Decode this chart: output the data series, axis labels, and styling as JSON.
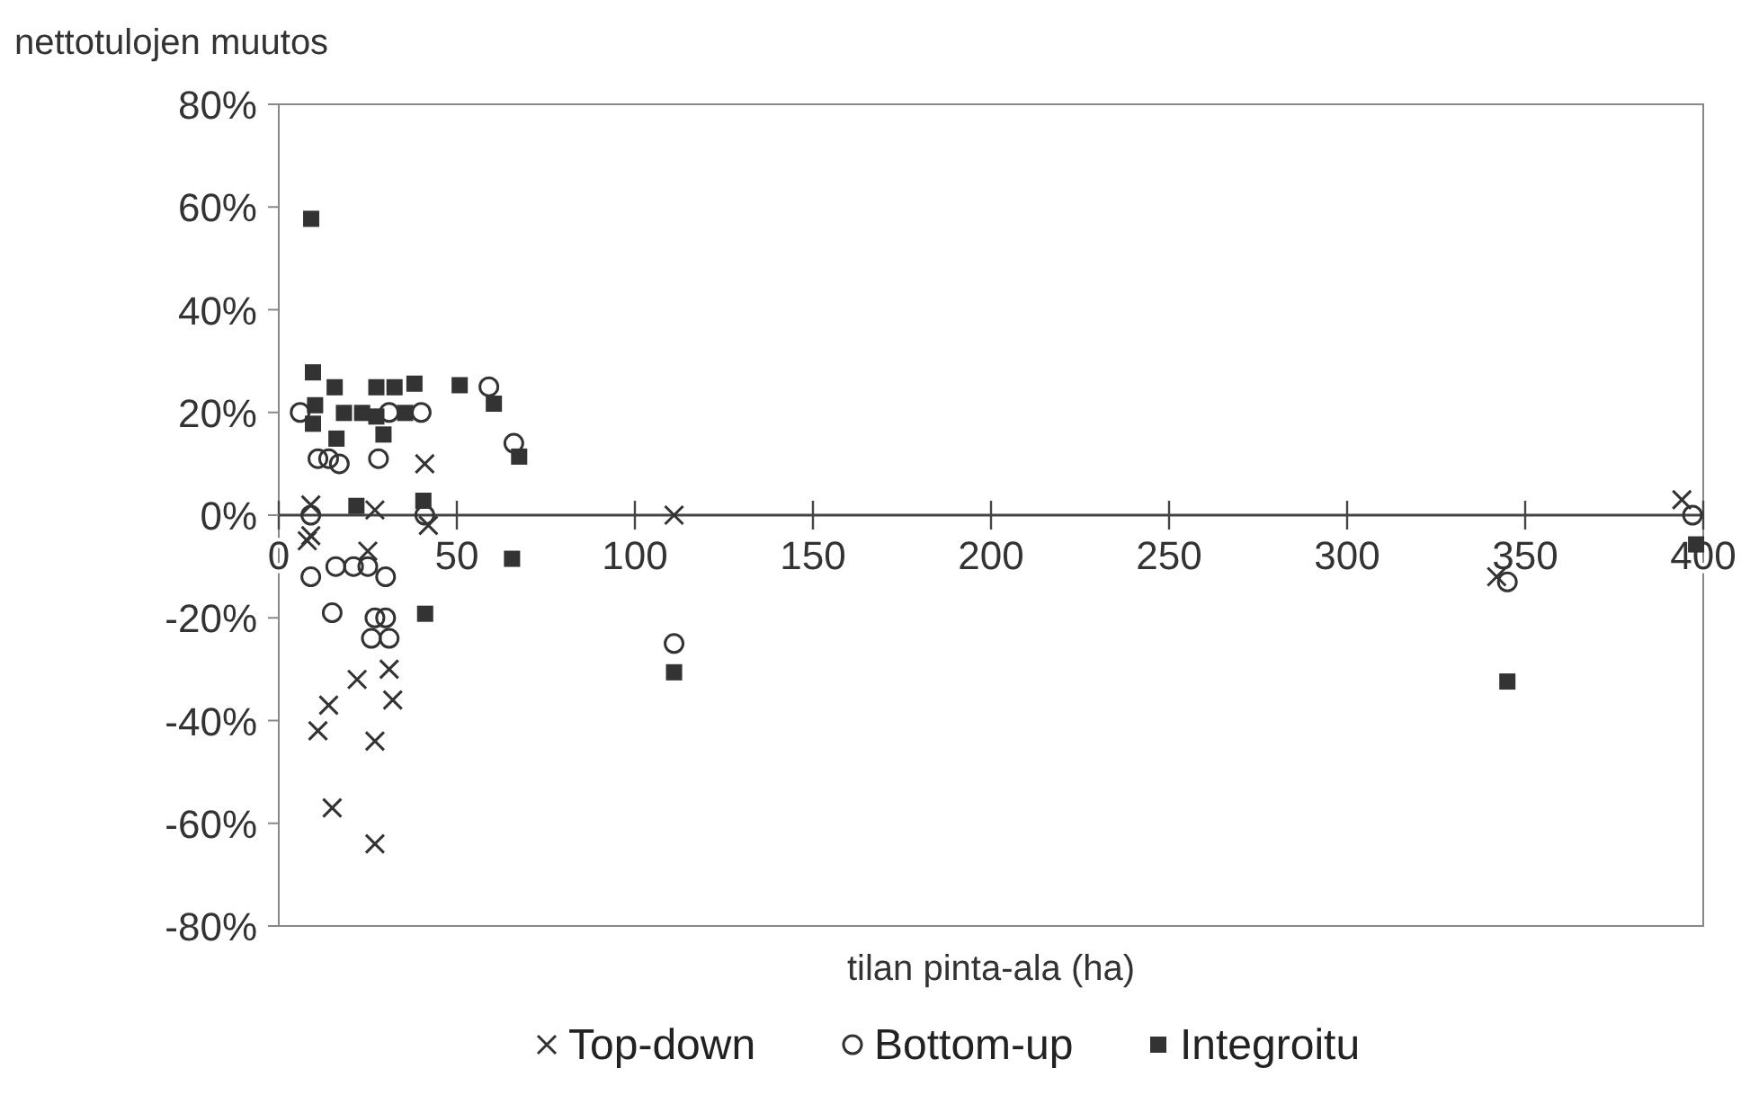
{
  "chart_data": {
    "type": "scatter",
    "ylabel": "nettotulojen muutos",
    "xlabel": "tilan pinta-ala (ha)",
    "xlim": [
      0,
      400
    ],
    "xticks": [
      0,
      50,
      100,
      150,
      200,
      250,
      300,
      350,
      400
    ],
    "ylim": [
      -80,
      80
    ],
    "yticks": [
      {
        "value": -80,
        "label": "-80%"
      },
      {
        "value": -60,
        "label": "-60%"
      },
      {
        "value": -40,
        "label": "-40%"
      },
      {
        "value": -20,
        "label": "-20%"
      },
      {
        "value": 0,
        "label": "0%"
      },
      {
        "value": 20,
        "label": "20%"
      },
      {
        "value": 40,
        "label": "40%"
      },
      {
        "value": 60,
        "label": "60%"
      },
      {
        "value": 80,
        "label": "80%"
      }
    ],
    "grid": false,
    "legend": "bottom",
    "series": [
      {
        "name": "Top-down",
        "color": "#333333",
        "marker": "cross",
        "x": [
          8,
          25,
          31,
          22,
          14,
          32,
          11,
          27,
          15,
          27,
          41,
          9,
          27,
          42,
          9,
          111,
          342,
          394
        ],
        "values": [
          -5,
          -7,
          -30,
          -32,
          -37,
          -36,
          -42,
          -44,
          -57,
          -64,
          10,
          2,
          1,
          -2,
          -4,
          0,
          -12,
          3
        ]
      },
      {
        "name": "Bottom-up",
        "color": "#333333",
        "marker": "circle",
        "x": [
          6,
          9,
          11,
          14,
          17,
          16,
          9,
          15,
          21,
          25,
          28,
          31,
          40,
          59,
          66,
          30,
          27,
          30,
          26,
          31,
          41,
          111,
          345,
          397
        ],
        "values": [
          20,
          0,
          11,
          11,
          10,
          -10,
          -12,
          -19,
          -10,
          -10,
          11,
          20,
          20,
          25,
          14,
          -12,
          -20,
          -20,
          -24,
          -24,
          0,
          -25,
          -13,
          0
        ]
      },
      {
        "name": "Integroitu",
        "color": "#333333",
        "marker": "square",
        "x": [
          9.1,
          9.6,
          10.2,
          9.6,
          15.7,
          16.2,
          18.3,
          21.8,
          23.4,
          27.4,
          27.4,
          29.4,
          32.5,
          35.5,
          38.1,
          40.6,
          41.1,
          50.8,
          60.4,
          65.5,
          67.5,
          111,
          345,
          398
        ],
        "values": [
          57.7,
          27.8,
          21.4,
          17.8,
          24.9,
          14.9,
          19.9,
          1.8,
          19.9,
          24.9,
          19.2,
          15.7,
          24.9,
          19.9,
          25.6,
          2.8,
          -19.2,
          25.3,
          21.7,
          -8.5,
          11.4,
          -30.6,
          -32.4,
          -5.7
        ]
      }
    ]
  }
}
